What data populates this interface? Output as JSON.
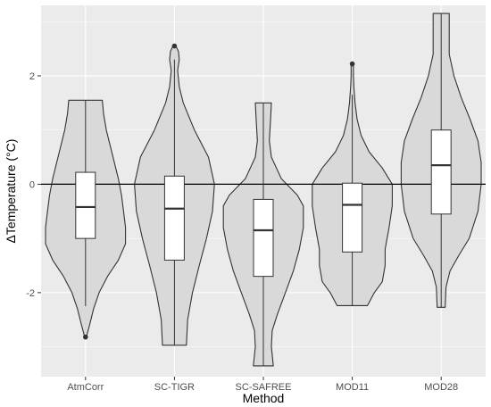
{
  "chart_data": {
    "type": "violin",
    "xlabel": "Method",
    "ylabel": "ΔTemperature (°C)",
    "categories": [
      "AtmCorr",
      "SC-TIGR",
      "SC-SAFREE",
      "MOD11",
      "MOD28"
    ],
    "ylim": [
      -3.55,
      3.3
    ],
    "yticks": [
      -2,
      0,
      2
    ],
    "hline": 0,
    "grid": true,
    "colors": {
      "panel": "#ebebeb",
      "gridline": "#ffffff",
      "violin_fill": "#d9d9d9",
      "outline": "#333333",
      "box_fill": "#ffffff",
      "zero_line": "#000000"
    },
    "boxes": [
      {
        "name": "AtmCorr",
        "whisker_low": -2.25,
        "q1": -1.0,
        "median": -0.42,
        "q3": 0.22,
        "whisker_high": 1.55,
        "outliers": [
          -2.82
        ]
      },
      {
        "name": "SC-TIGR",
        "whisker_low": -2.97,
        "q1": -1.4,
        "median": -0.45,
        "q3": 0.15,
        "whisker_high": 2.3,
        "outliers": [
          2.55
        ]
      },
      {
        "name": "SC-SAFREE",
        "whisker_low": -3.35,
        "q1": -1.7,
        "median": -0.85,
        "q3": -0.28,
        "whisker_high": 1.5,
        "outliers": []
      },
      {
        "name": "MOD11",
        "whisker_low": -2.25,
        "q1": -1.25,
        "median": -0.38,
        "q3": 0.02,
        "whisker_high": 1.65,
        "outliers": [
          2.22
        ]
      },
      {
        "name": "MOD28",
        "whisker_low": -2.27,
        "q1": -0.55,
        "median": 0.35,
        "q3": 1.0,
        "whisker_high": 3.15,
        "outliers": []
      }
    ],
    "violins": [
      {
        "name": "AtmCorr",
        "profile": [
          [
            -2.82,
            0.02
          ],
          [
            -2.6,
            0.1
          ],
          [
            -2.3,
            0.2
          ],
          [
            -2.0,
            0.34
          ],
          [
            -1.7,
            0.55
          ],
          [
            -1.4,
            0.82
          ],
          [
            -1.1,
            1.0
          ],
          [
            -0.8,
            1.0
          ],
          [
            -0.5,
            0.95
          ],
          [
            -0.2,
            0.9
          ],
          [
            0.1,
            0.82
          ],
          [
            0.4,
            0.72
          ],
          [
            0.7,
            0.62
          ],
          [
            1.0,
            0.52
          ],
          [
            1.3,
            0.45
          ],
          [
            1.55,
            0.42
          ]
        ]
      },
      {
        "name": "SC-TIGR",
        "profile": [
          [
            -2.97,
            0.3
          ],
          [
            -2.5,
            0.33
          ],
          [
            -2.0,
            0.45
          ],
          [
            -1.5,
            0.62
          ],
          [
            -1.0,
            0.8
          ],
          [
            -0.5,
            0.95
          ],
          [
            0.0,
            1.0
          ],
          [
            0.5,
            0.85
          ],
          [
            1.0,
            0.5
          ],
          [
            1.5,
            0.22
          ],
          [
            1.8,
            0.12
          ],
          [
            2.1,
            0.08
          ],
          [
            2.3,
            0.12
          ],
          [
            2.45,
            0.1
          ],
          [
            2.56,
            0.03
          ]
        ]
      },
      {
        "name": "SC-SAFREE",
        "profile": [
          [
            -3.35,
            0.25
          ],
          [
            -3.0,
            0.2
          ],
          [
            -2.7,
            0.22
          ],
          [
            -2.4,
            0.35
          ],
          [
            -2.0,
            0.55
          ],
          [
            -1.6,
            0.75
          ],
          [
            -1.2,
            0.9
          ],
          [
            -0.8,
            1.0
          ],
          [
            -0.4,
            1.0
          ],
          [
            -0.2,
            0.85
          ],
          [
            0.1,
            0.45
          ],
          [
            0.5,
            0.2
          ],
          [
            0.8,
            0.15
          ],
          [
            1.2,
            0.18
          ],
          [
            1.5,
            0.2
          ]
        ]
      },
      {
        "name": "MOD11",
        "profile": [
          [
            -2.24,
            0.38
          ],
          [
            -2.0,
            0.55
          ],
          [
            -1.8,
            0.75
          ],
          [
            -1.5,
            0.82
          ],
          [
            -1.2,
            0.82
          ],
          [
            -0.8,
            0.92
          ],
          [
            -0.4,
            1.0
          ],
          [
            0.0,
            1.0
          ],
          [
            0.3,
            0.75
          ],
          [
            0.6,
            0.42
          ],
          [
            0.9,
            0.22
          ],
          [
            1.2,
            0.12
          ],
          [
            1.5,
            0.07
          ],
          [
            1.8,
            0.04
          ],
          [
            2.0,
            0.03
          ],
          [
            2.22,
            0.03
          ]
        ]
      },
      {
        "name": "MOD28",
        "profile": [
          [
            -2.27,
            0.1
          ],
          [
            -1.9,
            0.12
          ],
          [
            -1.6,
            0.22
          ],
          [
            -1.3,
            0.45
          ],
          [
            -1.0,
            0.7
          ],
          [
            -0.5,
            0.92
          ],
          [
            0.0,
            1.0
          ],
          [
            0.4,
            1.0
          ],
          [
            0.8,
            0.92
          ],
          [
            1.2,
            0.72
          ],
          [
            1.6,
            0.5
          ],
          [
            2.0,
            0.32
          ],
          [
            2.4,
            0.2
          ],
          [
            2.8,
            0.2
          ],
          [
            3.15,
            0.2
          ]
        ]
      }
    ]
  }
}
